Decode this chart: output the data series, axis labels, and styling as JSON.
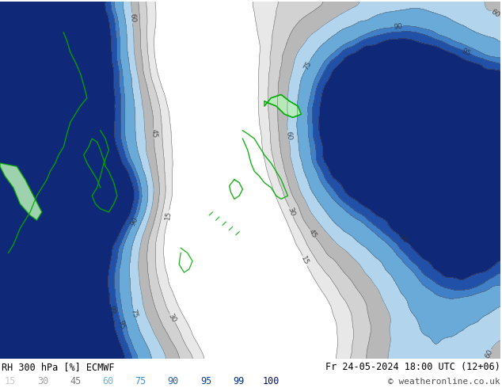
{
  "title_left": "RH 300 hPa [%] ECMWF",
  "title_right": "Fr 24-05-2024 18:00 UTC (12+06)",
  "copyright": "© weatheronline.co.uk",
  "colorbar_levels": [
    15,
    30,
    45,
    60,
    75,
    90,
    95,
    99,
    100
  ],
  "legend_colors": [
    "#c8c8c8",
    "#a0a0a0",
    "#787878",
    "#60b8e8",
    "#4090d8",
    "#2060c0",
    "#0040a8",
    "#002880",
    "#001060"
  ],
  "bg_color": "#ffffff",
  "figsize": [
    6.34,
    4.9
  ],
  "dpi": 100,
  "map_colors": {
    "under15": "#ffffff",
    "band15_30": "#e8e8e8",
    "band30_45": "#d0d0d0",
    "band45_60": "#b8b8b8",
    "band60_75": "#b8d4e8",
    "band75_90": "#6aaad8",
    "band90_95": "#4080c8",
    "band95_99": "#2050a8",
    "band99_100": "#102878",
    "green_land": "#90e890"
  },
  "contour_color": "#606060",
  "coastline_color": "#00aa00",
  "label_color": "#303030"
}
